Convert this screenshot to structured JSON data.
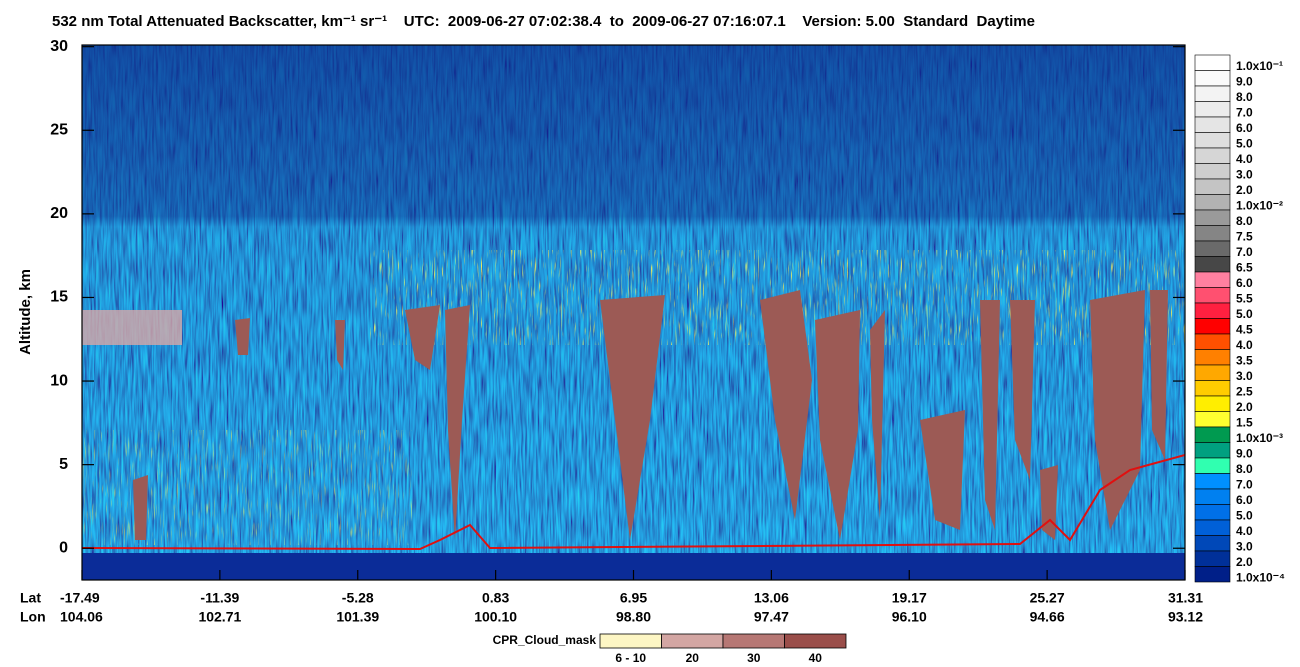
{
  "chart_data": {
    "type": "curtain",
    "title": "532 nm Total Attenuated Backscatter, km⁻¹ sr⁻¹    UTC:  2009-06-27 07:02:38.4  to  2009-06-27 07:16:07.1    Version: 5.00  Standard  Daytime",
    "y_label": "Altitude, km",
    "ylim": [
      -1.9,
      30.1
    ],
    "yticks": [
      0,
      5,
      10,
      15,
      20,
      25,
      30
    ],
    "x_rows": [
      "Lat",
      "Lon"
    ],
    "lat": [
      "-17.49",
      "-11.39",
      "-5.28",
      "0.83",
      "6.95",
      "13.06",
      "19.17",
      "25.27",
      "31.31"
    ],
    "lon": [
      "104.06",
      "102.71",
      "101.39",
      "100.10",
      "98.80",
      "97.47",
      "96.10",
      "94.66",
      "93.12"
    ],
    "colorbar": [
      {
        "label": "1.0x10⁻¹",
        "color": "#ffffff"
      },
      {
        "label": "9.0",
        "color": "#fafafa"
      },
      {
        "label": "8.0",
        "color": "#f3f3f3"
      },
      {
        "label": "7.0",
        "color": "#ececec"
      },
      {
        "label": "6.0",
        "color": "#e5e5e5"
      },
      {
        "label": "5.0",
        "color": "#dedede"
      },
      {
        "label": "4.0",
        "color": "#d6d6d6"
      },
      {
        "label": "3.0",
        "color": "#cecece"
      },
      {
        "label": "2.0",
        "color": "#c4c4c4"
      },
      {
        "label": "1.0x10⁻²",
        "color": "#b2b2b2"
      },
      {
        "label": "8.0",
        "color": "#9a9a9a"
      },
      {
        "label": "7.5",
        "color": "#858585"
      },
      {
        "label": "7.0",
        "color": "#6a6a6a"
      },
      {
        "label": "6.5",
        "color": "#474747"
      },
      {
        "label": "6.0",
        "color": "#ff80a0"
      },
      {
        "label": "5.5",
        "color": "#ff5070"
      },
      {
        "label": "5.0",
        "color": "#ff2040"
      },
      {
        "label": "4.5",
        "color": "#ff0000"
      },
      {
        "label": "4.0",
        "color": "#ff5000"
      },
      {
        "label": "3.5",
        "color": "#ff8000"
      },
      {
        "label": "3.0",
        "color": "#ffa800"
      },
      {
        "label": "2.5",
        "color": "#ffcc00"
      },
      {
        "label": "2.0",
        "color": "#ffee00"
      },
      {
        "label": "1.5",
        "color": "#ffff30"
      },
      {
        "label": "1.0x10⁻³",
        "color": "#009a50"
      },
      {
        "label": "9.0",
        "color": "#00a080"
      },
      {
        "label": "8.0",
        "color": "#30ffb0"
      },
      {
        "label": "7.0",
        "color": "#0090ff"
      },
      {
        "label": "6.0",
        "color": "#0080f0"
      },
      {
        "label": "5.0",
        "color": "#0070e8"
      },
      {
        "label": "4.0",
        "color": "#0060d8"
      },
      {
        "label": "3.0",
        "color": "#0048b8"
      },
      {
        "label": "2.0",
        "color": "#003099"
      },
      {
        "label": "1.0x10⁻⁴",
        "color": "#001f88"
      }
    ],
    "cpr_title": "CPR_Cloud_mask",
    "cpr_legend": [
      {
        "label": "6 - 10",
        "color": "#fdf6c4"
      },
      {
        "label": "20",
        "color": "#d3a6a3"
      },
      {
        "label": "30",
        "color": "#b67774"
      },
      {
        "label": "40",
        "color": "#9a4e4a"
      }
    ]
  }
}
